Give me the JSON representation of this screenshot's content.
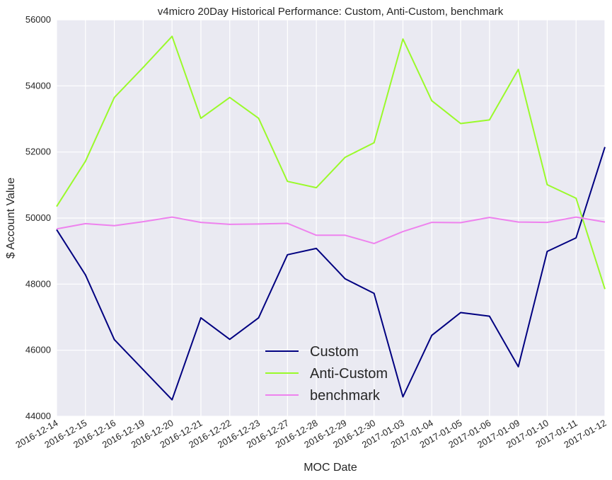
{
  "chart_data": {
    "type": "line",
    "title": "v4micro 20Day Historical Performance: Custom, Anti-Custom, benchmark",
    "xlabel": "MOC Date",
    "ylabel": "$ Account Value",
    "ylim": [
      44000,
      56000
    ],
    "yticks": [
      44000,
      46000,
      48000,
      50000,
      52000,
      54000,
      56000
    ],
    "ytick_labels": [
      "44000",
      "46000",
      "48000",
      "50000",
      "52000",
      "54000",
      "56000"
    ],
    "grid": true,
    "legend_position": "bottom-center",
    "categories": [
      "2016-12-14",
      "2016-12-15",
      "2016-12-16",
      "2016-12-19",
      "2016-12-20",
      "2016-12-21",
      "2016-12-22",
      "2016-12-23",
      "2016-12-27",
      "2016-12-28",
      "2016-12-29",
      "2016-12-30",
      "2017-01-03",
      "2017-01-04",
      "2017-01-05",
      "2017-01-06",
      "2017-01-09",
      "2017-01-10",
      "2017-01-11",
      "2017-01-12"
    ],
    "series": [
      {
        "name": "Custom",
        "color": "#000080",
        "values": [
          49650,
          48280,
          46320,
          45410,
          44500,
          46980,
          46330,
          46980,
          48890,
          49080,
          48160,
          47720,
          44590,
          46450,
          47140,
          47030,
          45500,
          48990,
          49400,
          52150
        ]
      },
      {
        "name": "Anti-Custom",
        "color": "#9afa2a",
        "values": [
          50350,
          51720,
          53650,
          54560,
          55500,
          53020,
          53650,
          53020,
          51110,
          50920,
          51840,
          52280,
          55420,
          53550,
          52860,
          52970,
          54500,
          51010,
          50600,
          47850
        ]
      },
      {
        "name": "benchmark",
        "color": "#ee82ee",
        "values": [
          49670,
          49830,
          49770,
          49890,
          50030,
          49870,
          49810,
          49820,
          49840,
          49480,
          49480,
          49230,
          49590,
          49870,
          49860,
          50020,
          49880,
          49870,
          50030,
          49880
        ]
      }
    ]
  }
}
